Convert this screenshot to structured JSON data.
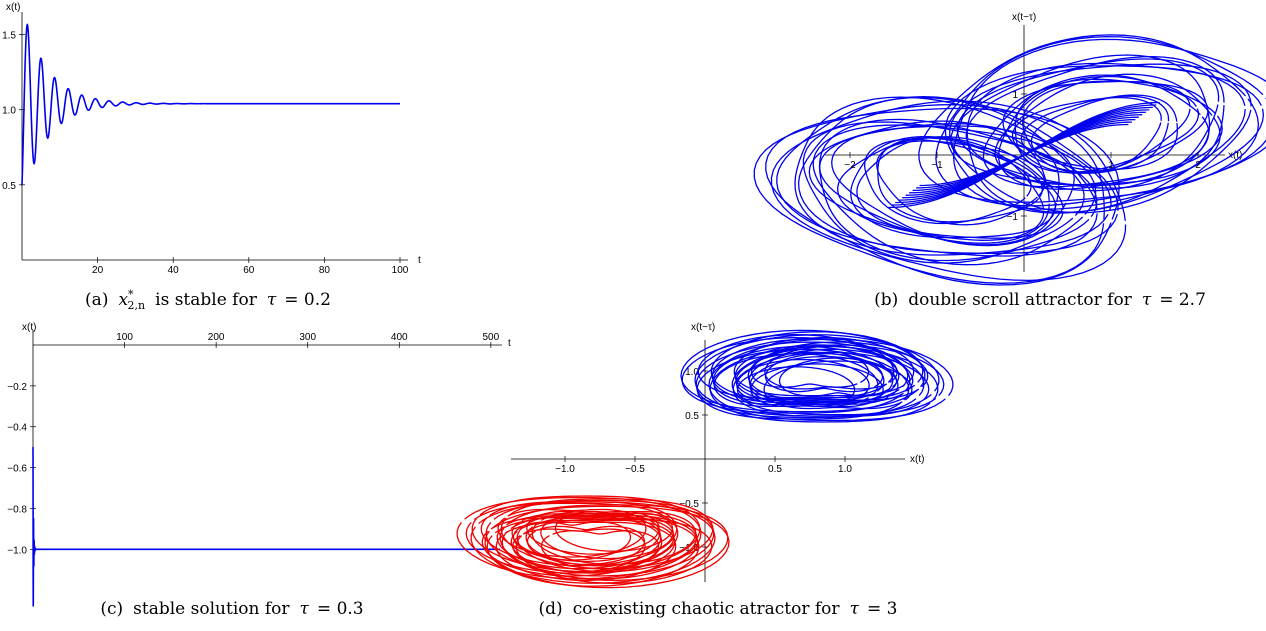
{
  "colors": {
    "primary": "#0000ee",
    "secondary": "#ee0000"
  },
  "chart_data": [
    {
      "id": "a",
      "type": "line",
      "caption": {
        "prefix": "(a)",
        "symbol": "x",
        "sup": "*",
        "sub": "2,n",
        "text": "is stable for",
        "tau": "τ",
        "value": "= 0.2"
      },
      "xlabel": "t",
      "ylabel": "x(t)",
      "xlim": [
        0,
        100
      ],
      "ylim": [
        0,
        1.65
      ],
      "xticks": [
        "20",
        "40",
        "60",
        "80",
        "100"
      ],
      "yticks": [
        "0.5",
        "1.0",
        "1.5"
      ],
      "series": [
        {
          "equilibrium": 1.04,
          "start": 0.5,
          "first_peak": 1.6,
          "first_trough": 0.73,
          "decay_time": 6.5,
          "period": 3.6
        }
      ]
    },
    {
      "id": "b",
      "type": "line",
      "caption": {
        "prefix": "(b)",
        "text": "double scroll attractor for",
        "tau": "τ",
        "value": "= 2.7"
      },
      "xlabel": "x(t)",
      "ylabel": "x(t−τ)",
      "xlim": [
        -2.3,
        2.3
      ],
      "ylim": [
        -1.6,
        1.7
      ],
      "xticks": [
        "−2",
        "−1",
        "1",
        "2"
      ],
      "yticks": [
        "−1",
        "1"
      ]
    },
    {
      "id": "c",
      "type": "line",
      "caption": {
        "prefix": "(c)",
        "text": "stable solution for",
        "tau": "τ",
        "value": "= 0.3"
      },
      "xlabel": "t",
      "ylabel": "x(t)",
      "xlim": [
        0,
        510
      ],
      "ylim": [
        -1.15,
        0
      ],
      "xticks": [
        "100",
        "200",
        "300",
        "400",
        "500"
      ],
      "yticks": [
        "−0.2",
        "−0.4",
        "−0.6",
        "−0.8",
        "−1.0"
      ],
      "series": [
        {
          "equilibrium": -1.0
        }
      ]
    },
    {
      "id": "d",
      "type": "line",
      "caption": {
        "prefix": "(d)",
        "text": "co-existing chaotic atractor for",
        "tau": "τ",
        "value": "= 3"
      },
      "xlabel": "x(t)",
      "ylabel": "x(t−τ)",
      "xlim": [
        -1.4,
        1.4
      ],
      "ylim": [
        -1.3,
        1.3
      ],
      "xticks": [
        "−1.0",
        "−0.5",
        "0.5",
        "1.0"
      ],
      "yticks": [
        "1.0",
        "0.5",
        "−0.5",
        "−1.0"
      ],
      "series": [
        {
          "attractor": "upper",
          "center": [
            0.8,
            0.95
          ],
          "span_x": [
            0.25,
            1.35
          ],
          "span_y": [
            0.55,
            1.35
          ]
        },
        {
          "attractor": "lower",
          "center": [
            -0.8,
            -0.95
          ],
          "span_x": [
            -1.35,
            -0.25
          ],
          "span_y": [
            -1.35,
            -0.55
          ]
        }
      ]
    }
  ]
}
